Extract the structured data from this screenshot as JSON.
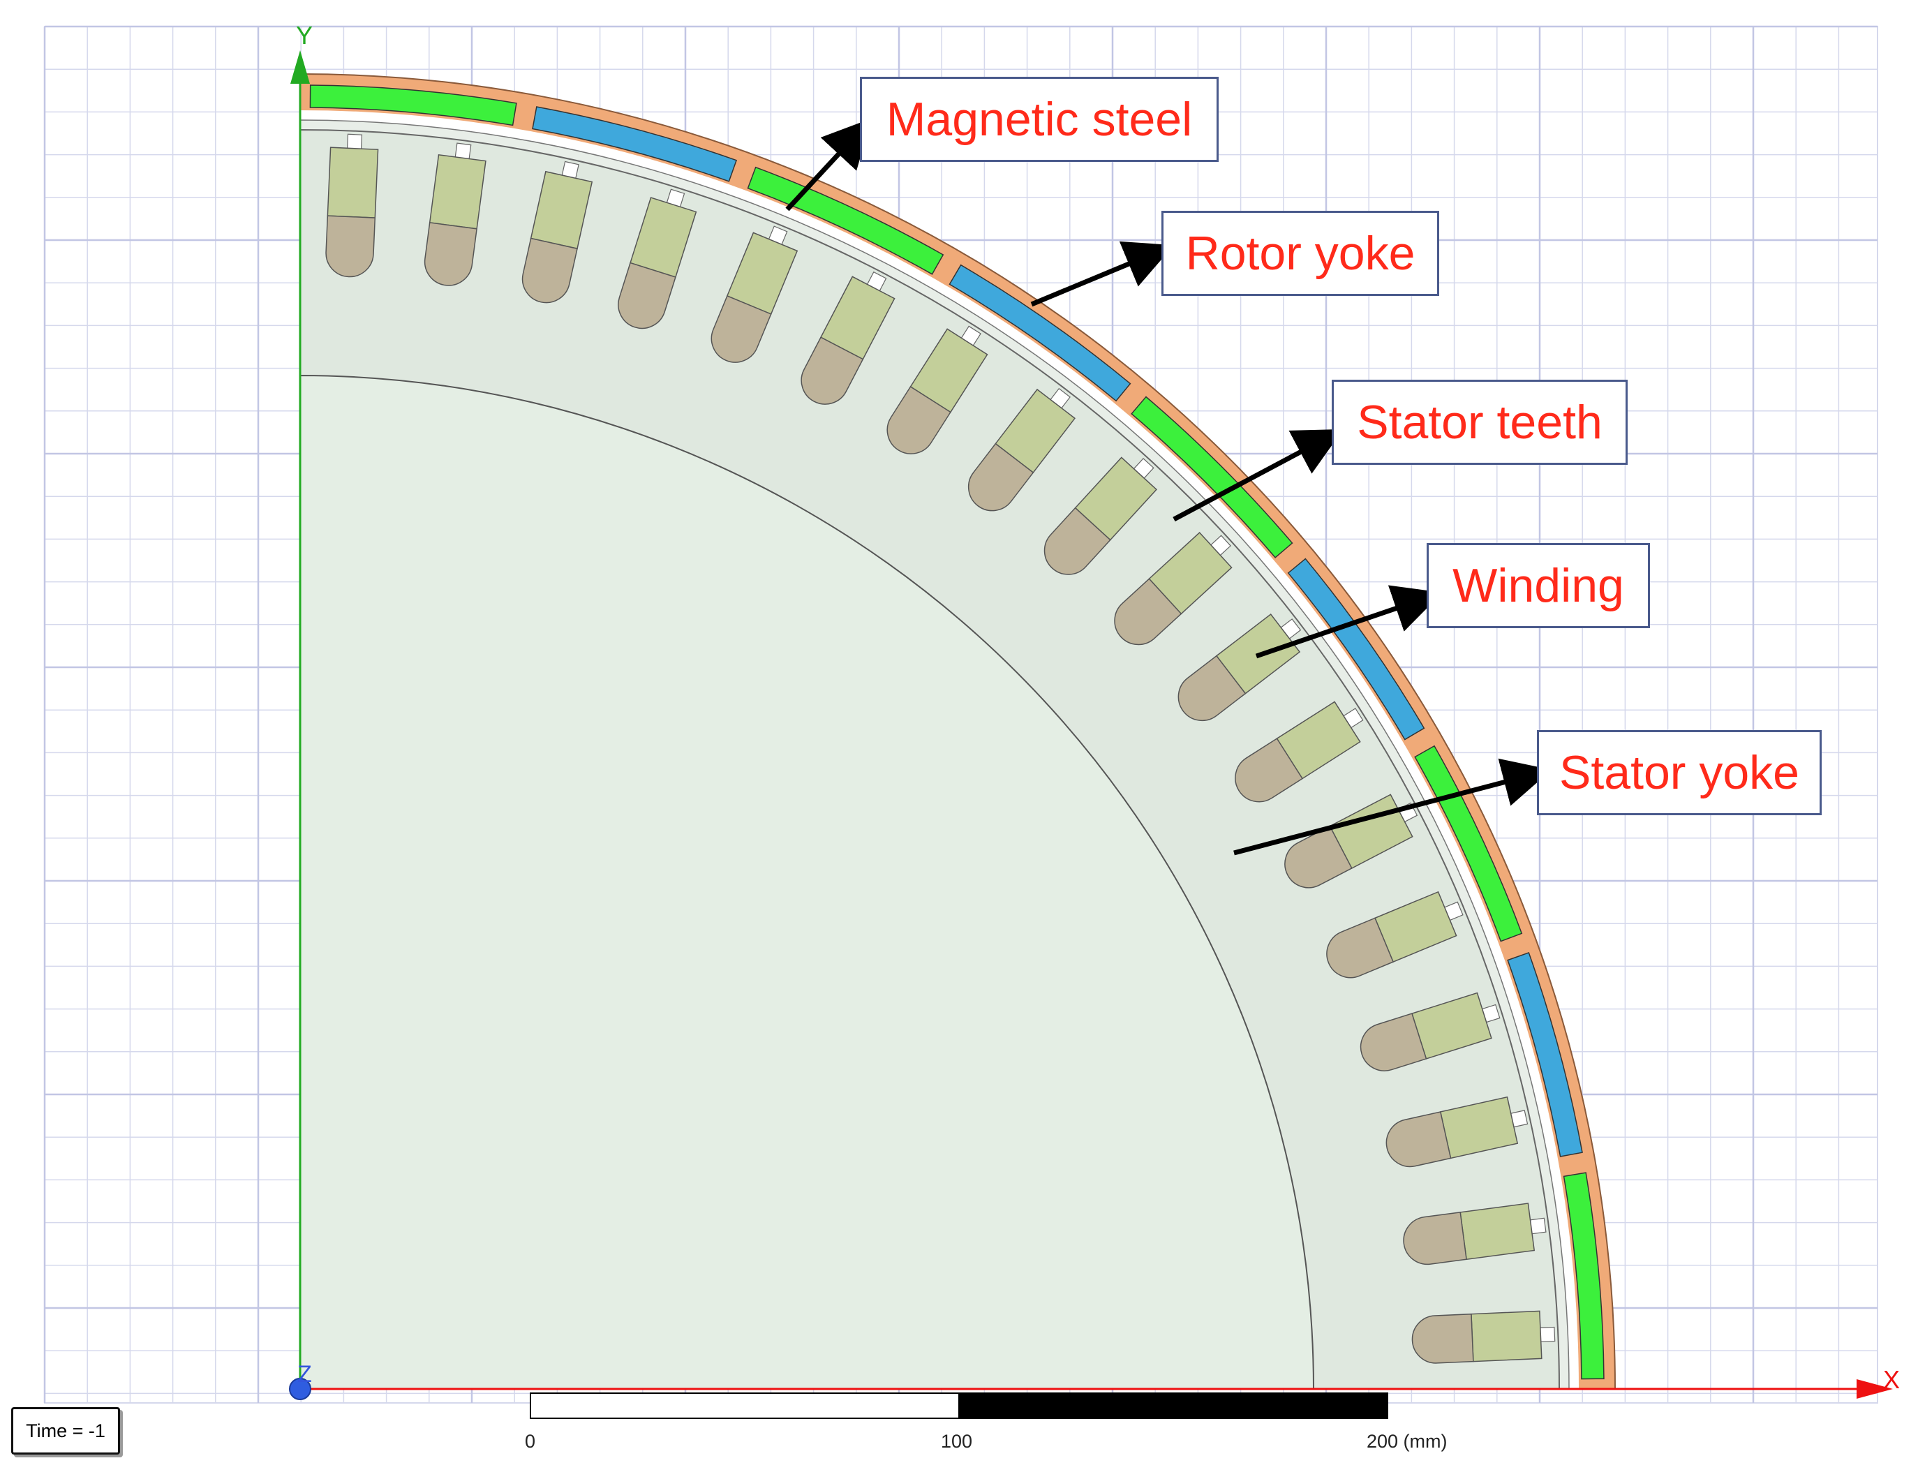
{
  "viewport": {
    "axes": {
      "x_label": "X",
      "y_label": "Y",
      "z_label": "Z"
    },
    "time_label": "Time = -1",
    "scale_bar": {
      "ticks": [
        "0",
        "100",
        "200 (mm)"
      ]
    }
  },
  "callouts": [
    {
      "key": "magnetic_steel",
      "label": "Magnetic steel"
    },
    {
      "key": "rotor_yoke",
      "label": "Rotor yoke"
    },
    {
      "key": "stator_teeth",
      "label": "Stator teeth"
    },
    {
      "key": "winding",
      "label": "Winding"
    },
    {
      "key": "stator_yoke",
      "label": "Stator yoke"
    }
  ],
  "colors": {
    "rotor_yoke": "#f0aa78",
    "magnet_blue": "#3fa8dc",
    "magnet_green": "#3cf03c",
    "stator": "#dfe8df",
    "shaft_region": "#e4eee4",
    "winding_upper": "#c3cf9a",
    "winding_lower": "#beb39a",
    "grid": "#d5d8ec",
    "x_axis": "#ee1111",
    "y_axis": "#22aa22",
    "callout_text": "#ff2a1a"
  },
  "geometry_info": {
    "magnet_poles_in_quarter": 9,
    "slots_in_quarter": 18
  }
}
